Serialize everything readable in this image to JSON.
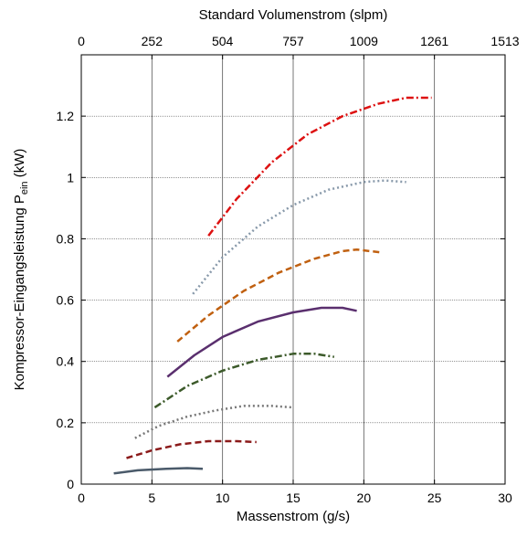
{
  "chart_data": {
    "type": "line",
    "title": "",
    "xlabel": "Massenstrom (g/s)",
    "ylabel": "Kompressor-Eingangsleistung P",
    "ylabel_sub": "ein",
    "ylabel_unit": " (kW)",
    "x2label": "Standard Volumenstrom (slpm)",
    "xlim": [
      0,
      30
    ],
    "ylim": [
      0,
      1.4
    ],
    "x_ticks": [
      0,
      5,
      10,
      15,
      20,
      25,
      30
    ],
    "y_ticks": [
      0,
      0.2,
      0.4,
      0.6,
      0.8,
      1,
      1.2
    ],
    "y_tick_labels": [
      "0",
      "0.2",
      "0.4",
      "0.6",
      "0.8",
      "1",
      "1.2"
    ],
    "x2_tick_labels": [
      "0",
      "252",
      "504",
      "757",
      "1009",
      "1261",
      "1513"
    ],
    "grid": true,
    "legend": "none",
    "series": [
      {
        "color": "#4a5a6a",
        "dash": "solid",
        "x": [
          2.3,
          4.0,
          6.0,
          7.5,
          8.6
        ],
        "y": [
          0.035,
          0.045,
          0.05,
          0.052,
          0.05
        ]
      },
      {
        "color": "#8b1a1a",
        "dash": "dash",
        "x": [
          3.2,
          5.0,
          7.0,
          9.0,
          11.0,
          12.4
        ],
        "y": [
          0.085,
          0.11,
          0.13,
          0.14,
          0.14,
          0.137
        ]
      },
      {
        "color": "#777777",
        "dash": "dot",
        "x": [
          3.8,
          5.5,
          7.5,
          9.5,
          11.5,
          13.5,
          15.0
        ],
        "y": [
          0.15,
          0.19,
          0.22,
          0.24,
          0.255,
          0.255,
          0.25
        ]
      },
      {
        "color": "#3c5a2a",
        "dash": "dashdot",
        "x": [
          5.2,
          7.5,
          10.0,
          12.5,
          15.0,
          16.5,
          17.9
        ],
        "y": [
          0.25,
          0.32,
          0.37,
          0.405,
          0.425,
          0.425,
          0.415
        ]
      },
      {
        "color": "#5a2f6e",
        "dash": "solid",
        "x": [
          6.1,
          8.0,
          10.0,
          12.5,
          15.0,
          17.0,
          18.5,
          19.5
        ],
        "y": [
          0.35,
          0.42,
          0.48,
          0.53,
          0.56,
          0.575,
          0.575,
          0.565
        ]
      },
      {
        "color": "#c06010",
        "dash": "dash",
        "x": [
          6.8,
          9.0,
          11.5,
          14.0,
          16.5,
          18.5,
          19.5,
          21.3
        ],
        "y": [
          0.465,
          0.55,
          0.63,
          0.69,
          0.735,
          0.76,
          0.765,
          0.755
        ]
      },
      {
        "color": "#8899aa",
        "dash": "dot",
        "x": [
          7.9,
          10.0,
          12.5,
          15.0,
          17.5,
          20.0,
          21.5,
          23.0
        ],
        "y": [
          0.62,
          0.74,
          0.84,
          0.91,
          0.96,
          0.985,
          0.99,
          0.985
        ]
      },
      {
        "color": "#dd1111",
        "dash": "dashdot",
        "x": [
          9.0,
          11.0,
          13.5,
          16.0,
          18.5,
          21.0,
          23.0,
          24.8
        ],
        "y": [
          0.81,
          0.93,
          1.05,
          1.14,
          1.2,
          1.24,
          1.26,
          1.26
        ]
      }
    ]
  }
}
